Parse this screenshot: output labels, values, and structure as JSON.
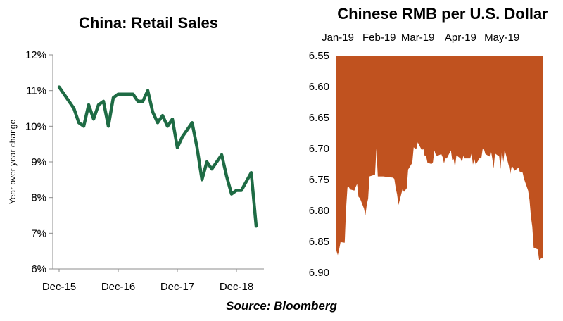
{
  "source": "Source: Bloomberg",
  "chart_data": [
    {
      "type": "line",
      "title": "China: Retail Sales",
      "ylabel": "Year over year change",
      "xlabel": "",
      "ylim": [
        6,
        12
      ],
      "y_ticks": [
        "6%",
        "7%",
        "8%",
        "9%",
        "10%",
        "11%",
        "12%"
      ],
      "y_tick_values": [
        6,
        7,
        8,
        9,
        10,
        11,
        12
      ],
      "x_ticks": [
        "Dec-15",
        "Dec-16",
        "Dec-17",
        "Dec-18"
      ],
      "x_tick_values": [
        "2015-12",
        "2016-12",
        "2017-12",
        "2018-12"
      ],
      "color": "#1e6b44",
      "grid": false,
      "series": [
        {
          "x": [
            "2015-12",
            "2016-03",
            "2016-04",
            "2016-05",
            "2016-06",
            "2016-07",
            "2016-08",
            "2016-09",
            "2016-10",
            "2016-11",
            "2016-12",
            "2017-01",
            "2017-03",
            "2017-04",
            "2017-05",
            "2017-06",
            "2017-07",
            "2017-08",
            "2017-09",
            "2017-10",
            "2017-11",
            "2017-12",
            "2018-01",
            "2018-03",
            "2018-04",
            "2018-05",
            "2018-06",
            "2018-07",
            "2018-08",
            "2018-09",
            "2018-10",
            "2018-11",
            "2018-12",
            "2019-01",
            "2019-03",
            "2019-04"
          ],
          "values": [
            11.1,
            10.5,
            10.1,
            10.0,
            10.6,
            10.2,
            10.6,
            10.7,
            10.0,
            10.8,
            10.9,
            10.9,
            10.9,
            10.7,
            10.7,
            11.0,
            10.4,
            10.1,
            10.3,
            10.0,
            10.2,
            9.4,
            9.7,
            10.1,
            9.4,
            8.5,
            9.0,
            8.8,
            9.0,
            9.2,
            8.6,
            8.1,
            8.2,
            8.2,
            8.7,
            7.2
          ]
        }
      ]
    },
    {
      "type": "area",
      "title": "Chinese RMB per U.S. Dollar",
      "xlabel": "",
      "ylabel": "",
      "ylim": [
        6.55,
        6.9
      ],
      "y_inverted": true,
      "y_ticks": [
        "6.55",
        "6.60",
        "6.65",
        "6.70",
        "6.75",
        "6.80",
        "6.85",
        "6.90"
      ],
      "y_tick_values": [
        6.55,
        6.6,
        6.65,
        6.7,
        6.75,
        6.8,
        6.85,
        6.9
      ],
      "x_ticks": [
        "Jan-19",
        "Feb-19",
        "Mar-19",
        "Apr-19",
        "May-19"
      ],
      "x_tick_values": [
        "2019-01-01",
        "2019-02-01",
        "2019-03-01",
        "2019-04-01",
        "2019-05-01"
      ],
      "xlim": [
        "2019-01-01",
        "2019-05-31"
      ],
      "color": "#c0521f",
      "grid": false,
      "series": [
        {
          "x": [
            "2019-01-01",
            "2019-01-02",
            "2019-01-03",
            "2019-01-04",
            "2019-01-07",
            "2019-01-08",
            "2019-01-09",
            "2019-01-10",
            "2019-01-11",
            "2019-01-14",
            "2019-01-15",
            "2019-01-16",
            "2019-01-17",
            "2019-01-18",
            "2019-01-21",
            "2019-01-22",
            "2019-01-23",
            "2019-01-24",
            "2019-01-25",
            "2019-01-28",
            "2019-01-29",
            "2019-01-30",
            "2019-01-31",
            "2019-02-01",
            "2019-02-04",
            "2019-02-11",
            "2019-02-12",
            "2019-02-13",
            "2019-02-14",
            "2019-02-15",
            "2019-02-18",
            "2019-02-19",
            "2019-02-20",
            "2019-02-21",
            "2019-02-22",
            "2019-02-25",
            "2019-02-26",
            "2019-02-27",
            "2019-02-28",
            "2019-03-01",
            "2019-03-04",
            "2019-03-05",
            "2019-03-06",
            "2019-03-07",
            "2019-03-08",
            "2019-03-11",
            "2019-03-12",
            "2019-03-13",
            "2019-03-14",
            "2019-03-15",
            "2019-03-18",
            "2019-03-19",
            "2019-03-20",
            "2019-03-21",
            "2019-03-22",
            "2019-03-25",
            "2019-03-26",
            "2019-03-27",
            "2019-03-28",
            "2019-03-29",
            "2019-04-01",
            "2019-04-02",
            "2019-04-03",
            "2019-04-04",
            "2019-04-08",
            "2019-04-09",
            "2019-04-10",
            "2019-04-11",
            "2019-04-12",
            "2019-04-15",
            "2019-04-16",
            "2019-04-17",
            "2019-04-18",
            "2019-04-19",
            "2019-04-22",
            "2019-04-23",
            "2019-04-24",
            "2019-04-25",
            "2019-04-26",
            "2019-04-29",
            "2019-04-30",
            "2019-05-01",
            "2019-05-02",
            "2019-05-03",
            "2019-05-06",
            "2019-05-07",
            "2019-05-08",
            "2019-05-09",
            "2019-05-10",
            "2019-05-13",
            "2019-05-14",
            "2019-05-15",
            "2019-05-16",
            "2019-05-17",
            "2019-05-20",
            "2019-05-21",
            "2019-05-22",
            "2019-05-23",
            "2019-05-24",
            "2019-05-27",
            "2019-05-28",
            "2019-05-29",
            "2019-05-30",
            "2019-05-31"
          ],
          "values": [
            6.865,
            6.872,
            6.863,
            6.851,
            6.852,
            6.798,
            6.763,
            6.762,
            6.766,
            6.768,
            6.762,
            6.757,
            6.778,
            6.78,
            6.797,
            6.808,
            6.791,
            6.781,
            6.745,
            6.743,
            6.742,
            6.7,
            6.745,
            6.745,
            6.745,
            6.747,
            6.749,
            6.764,
            6.774,
            6.791,
            6.765,
            6.77,
            6.767,
            6.764,
            6.734,
            6.723,
            6.698,
            6.7,
            6.7,
            6.69,
            6.703,
            6.7,
            6.712,
            6.712,
            6.723,
            6.725,
            6.722,
            6.703,
            6.71,
            6.712,
            6.709,
            6.714,
            6.724,
            6.716,
            6.716,
            6.703,
            6.719,
            6.717,
            6.731,
            6.711,
            6.716,
            6.722,
            6.712,
            6.716,
            6.716,
            6.708,
            6.726,
            6.717,
            6.726,
            6.715,
            6.717,
            6.701,
            6.701,
            6.709,
            6.713,
            6.703,
            6.716,
            6.732,
            6.708,
            6.713,
            6.733,
            6.703,
            6.722,
            6.702,
            6.728,
            6.741,
            6.73,
            6.73,
            6.736,
            6.731,
            6.738,
            6.737,
            6.739,
            6.749,
            6.768,
            6.783,
            6.81,
            6.826,
            6.86,
            6.863,
            6.88,
            6.878,
            6.877,
            6.878
          ]
        }
      ]
    }
  ]
}
